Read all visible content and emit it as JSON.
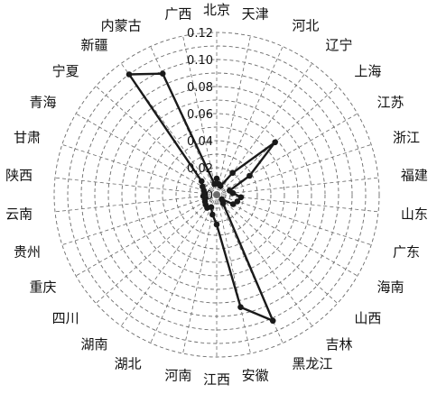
{
  "chart_data": {
    "type": "radar",
    "categories": [
      "北京",
      "天津",
      "河北",
      "辽宁",
      "上海",
      "江苏",
      "浙江",
      "福建",
      "山东",
      "广东",
      "海南",
      "山西",
      "吉林",
      "黑龙江",
      "安徽",
      "江西",
      "河南",
      "湖北",
      "湖南",
      "四川",
      "重庆",
      "贵州",
      "云南",
      "陕西",
      "甘肃",
      "青海",
      "宁夏",
      "新疆",
      "内蒙古",
      "广西"
    ],
    "series": [
      {
        "values": [
          0.012,
          0.008,
          0.007,
          0.02,
          0.058,
          0.028,
          0.01,
          0.012,
          0.018,
          0.016,
          0.014,
          0.005,
          0.008,
          0.102,
          0.085,
          0.022,
          0.015,
          0.01,
          0.012,
          0.011,
          0.01,
          0.009,
          0.01,
          0.009,
          0.01,
          0.012,
          0.015,
          0.11,
          0.098,
          0.008
        ]
      }
    ],
    "axis_ticks": [
      "0",
      "0.02",
      "0.04",
      "0.06",
      "0.08",
      "0.10",
      "0.12"
    ],
    "rlim": [
      0,
      0.12
    ],
    "grid": true
  }
}
